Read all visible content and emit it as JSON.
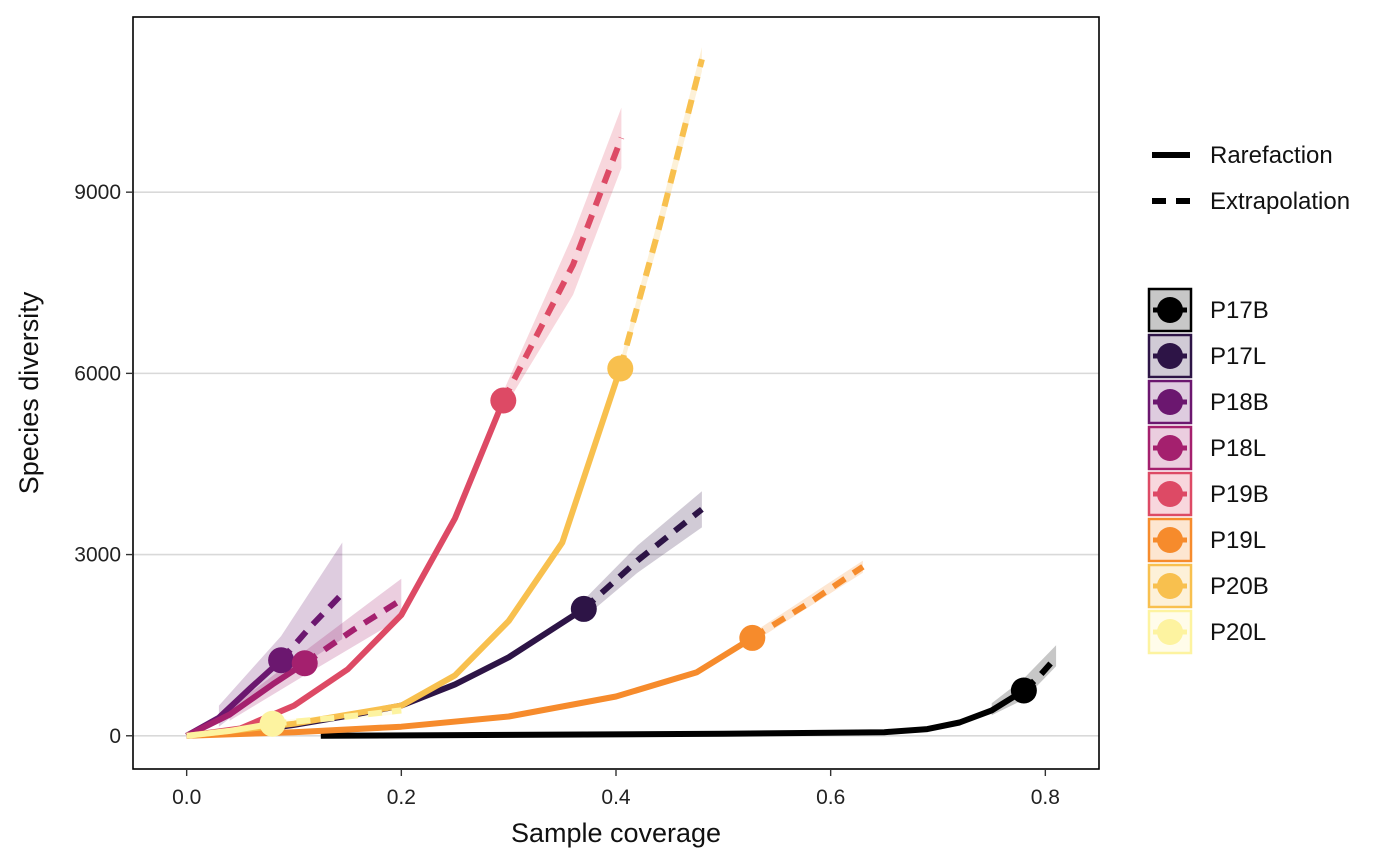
{
  "chart_data": {
    "type": "line",
    "xlabel": "Sample coverage",
    "ylabel": "Species diversity",
    "xlim": [
      -0.05,
      0.85
    ],
    "ylim": [
      -550,
      11900
    ],
    "x_ticks": [
      "0.0",
      "0.2",
      "0.4",
      "0.6",
      "0.8"
    ],
    "y_ticks": [
      "0",
      "3000",
      "6000",
      "9000"
    ],
    "grid": "horizontal major",
    "legend_position": "right",
    "linetype_legend": [
      {
        "label": "Rarefaction",
        "style": "solid"
      },
      {
        "label": "Extrapolation",
        "style": "dashed"
      }
    ],
    "series": [
      {
        "name": "P17B",
        "color": "#000000",
        "rarefaction": [
          [
            0.125,
            0
          ],
          [
            0.3,
            15
          ],
          [
            0.5,
            35
          ],
          [
            0.65,
            60
          ],
          [
            0.69,
            110
          ],
          [
            0.72,
            220
          ],
          [
            0.75,
            420
          ],
          [
            0.78,
            750
          ]
        ],
        "extrapolation": [
          [
            0.78,
            750
          ],
          [
            0.795,
            1000
          ],
          [
            0.81,
            1300
          ]
        ],
        "reference": [
          0.78,
          750
        ],
        "band": {
          "upper": [
            [
              0.75,
              540
            ],
            [
              0.78,
              950
            ],
            [
              0.81,
              1500
            ]
          ],
          "lower": [
            [
              0.81,
              1150
            ],
            [
              0.78,
              600
            ],
            [
              0.75,
              340
            ]
          ]
        }
      },
      {
        "name": "P17L",
        "color": "#2D1446",
        "rarefaction": [
          [
            0.0,
            0
          ],
          [
            0.05,
            60
          ],
          [
            0.1,
            180
          ],
          [
            0.15,
            330
          ],
          [
            0.2,
            500
          ],
          [
            0.25,
            850
          ],
          [
            0.3,
            1300
          ],
          [
            0.37,
            2100
          ]
        ],
        "extrapolation": [
          [
            0.37,
            2100
          ],
          [
            0.42,
            2900
          ],
          [
            0.48,
            3750
          ]
        ],
        "reference": [
          0.37,
          2100
        ],
        "band": {
          "upper": [
            [
              0.37,
              2250
            ],
            [
              0.42,
              3150
            ],
            [
              0.48,
              4050
            ]
          ],
          "lower": [
            [
              0.48,
              3450
            ],
            [
              0.42,
              2700
            ],
            [
              0.37,
              1950
            ]
          ]
        }
      },
      {
        "name": "P18B",
        "color": "#6B176F",
        "rarefaction": [
          [
            0.0,
            0
          ],
          [
            0.03,
            300
          ],
          [
            0.06,
            800
          ],
          [
            0.088,
            1250
          ]
        ],
        "extrapolation": [
          [
            0.088,
            1250
          ],
          [
            0.115,
            1800
          ],
          [
            0.145,
            2350
          ]
        ],
        "reference": [
          0.088,
          1250
        ],
        "band": {
          "upper": [
            [
              0.03,
              500
            ],
            [
              0.088,
              1650
            ],
            [
              0.145,
              3200
            ]
          ],
          "lower": [
            [
              0.145,
              1600
            ],
            [
              0.088,
              950
            ],
            [
              0.03,
              150
            ]
          ]
        }
      },
      {
        "name": "P18L",
        "color": "#A4206E",
        "rarefaction": [
          [
            0.0,
            0
          ],
          [
            0.04,
            350
          ],
          [
            0.08,
            850
          ],
          [
            0.11,
            1200
          ]
        ],
        "extrapolation": [
          [
            0.11,
            1200
          ],
          [
            0.155,
            1750
          ],
          [
            0.2,
            2250
          ]
        ],
        "reference": [
          0.11,
          1200
        ],
        "band": {
          "upper": [
            [
              0.04,
              450
            ],
            [
              0.11,
              1400
            ],
            [
              0.2,
              2600
            ]
          ],
          "lower": [
            [
              0.2,
              1950
            ],
            [
              0.11,
              1000
            ],
            [
              0.04,
              250
            ]
          ]
        }
      },
      {
        "name": "P19B",
        "color": "#DD4A65",
        "rarefaction": [
          [
            0.0,
            0
          ],
          [
            0.05,
            120
          ],
          [
            0.1,
            500
          ],
          [
            0.15,
            1100
          ],
          [
            0.2,
            2000
          ],
          [
            0.25,
            3600
          ],
          [
            0.295,
            5550
          ]
        ],
        "extrapolation": [
          [
            0.295,
            5550
          ],
          [
            0.36,
            7800
          ],
          [
            0.405,
            9900
          ]
        ],
        "reference": [
          0.295,
          5550
        ],
        "band": {
          "upper": [
            [
              0.295,
              5700
            ],
            [
              0.36,
              8300
            ],
            [
              0.405,
              10400
            ]
          ],
          "lower": [
            [
              0.405,
              9400
            ],
            [
              0.36,
              7300
            ],
            [
              0.295,
              5400
            ]
          ]
        }
      },
      {
        "name": "P19L",
        "color": "#F68B2C",
        "rarefaction": [
          [
            0.0,
            0
          ],
          [
            0.1,
            60
          ],
          [
            0.2,
            150
          ],
          [
            0.3,
            320
          ],
          [
            0.4,
            650
          ],
          [
            0.475,
            1050
          ],
          [
            0.527,
            1620
          ]
        ],
        "extrapolation": [
          [
            0.527,
            1620
          ],
          [
            0.58,
            2200
          ],
          [
            0.63,
            2800
          ]
        ],
        "reference": [
          0.527,
          1620
        ],
        "band": {
          "upper": [
            [
              0.527,
              1700
            ],
            [
              0.63,
              2900
            ]
          ],
          "lower": [
            [
              0.63,
              2700
            ],
            [
              0.527,
              1540
            ]
          ]
        }
      },
      {
        "name": "P20B",
        "color": "#F8C04E",
        "rarefaction": [
          [
            0.0,
            0
          ],
          [
            0.1,
            200
          ],
          [
            0.2,
            500
          ],
          [
            0.25,
            1000
          ],
          [
            0.3,
            1900
          ],
          [
            0.35,
            3200
          ],
          [
            0.404,
            6080
          ]
        ],
        "extrapolation": [
          [
            0.404,
            6080
          ],
          [
            0.44,
            8400
          ],
          [
            0.48,
            11200
          ]
        ],
        "reference": [
          0.404,
          6080
        ],
        "band": {
          "upper": [
            [
              0.404,
              6200
            ],
            [
              0.44,
              8600
            ],
            [
              0.48,
              11400
            ]
          ],
          "lower": [
            [
              0.48,
              11000
            ],
            [
              0.44,
              8200
            ],
            [
              0.404,
              5960
            ]
          ]
        }
      },
      {
        "name": "P20L",
        "color": "#FDF3A0",
        "rarefaction": [
          [
            0.0,
            0
          ],
          [
            0.04,
            80
          ],
          [
            0.08,
            200
          ]
        ],
        "extrapolation": [
          [
            0.08,
            200
          ],
          [
            0.14,
            300
          ],
          [
            0.2,
            420
          ]
        ],
        "reference": [
          0.08,
          200
        ],
        "band": {
          "upper": [
            [
              0.08,
              240
            ],
            [
              0.2,
              480
            ]
          ],
          "lower": [
            [
              0.2,
              360
            ],
            [
              0.08,
              160
            ]
          ]
        }
      }
    ]
  }
}
